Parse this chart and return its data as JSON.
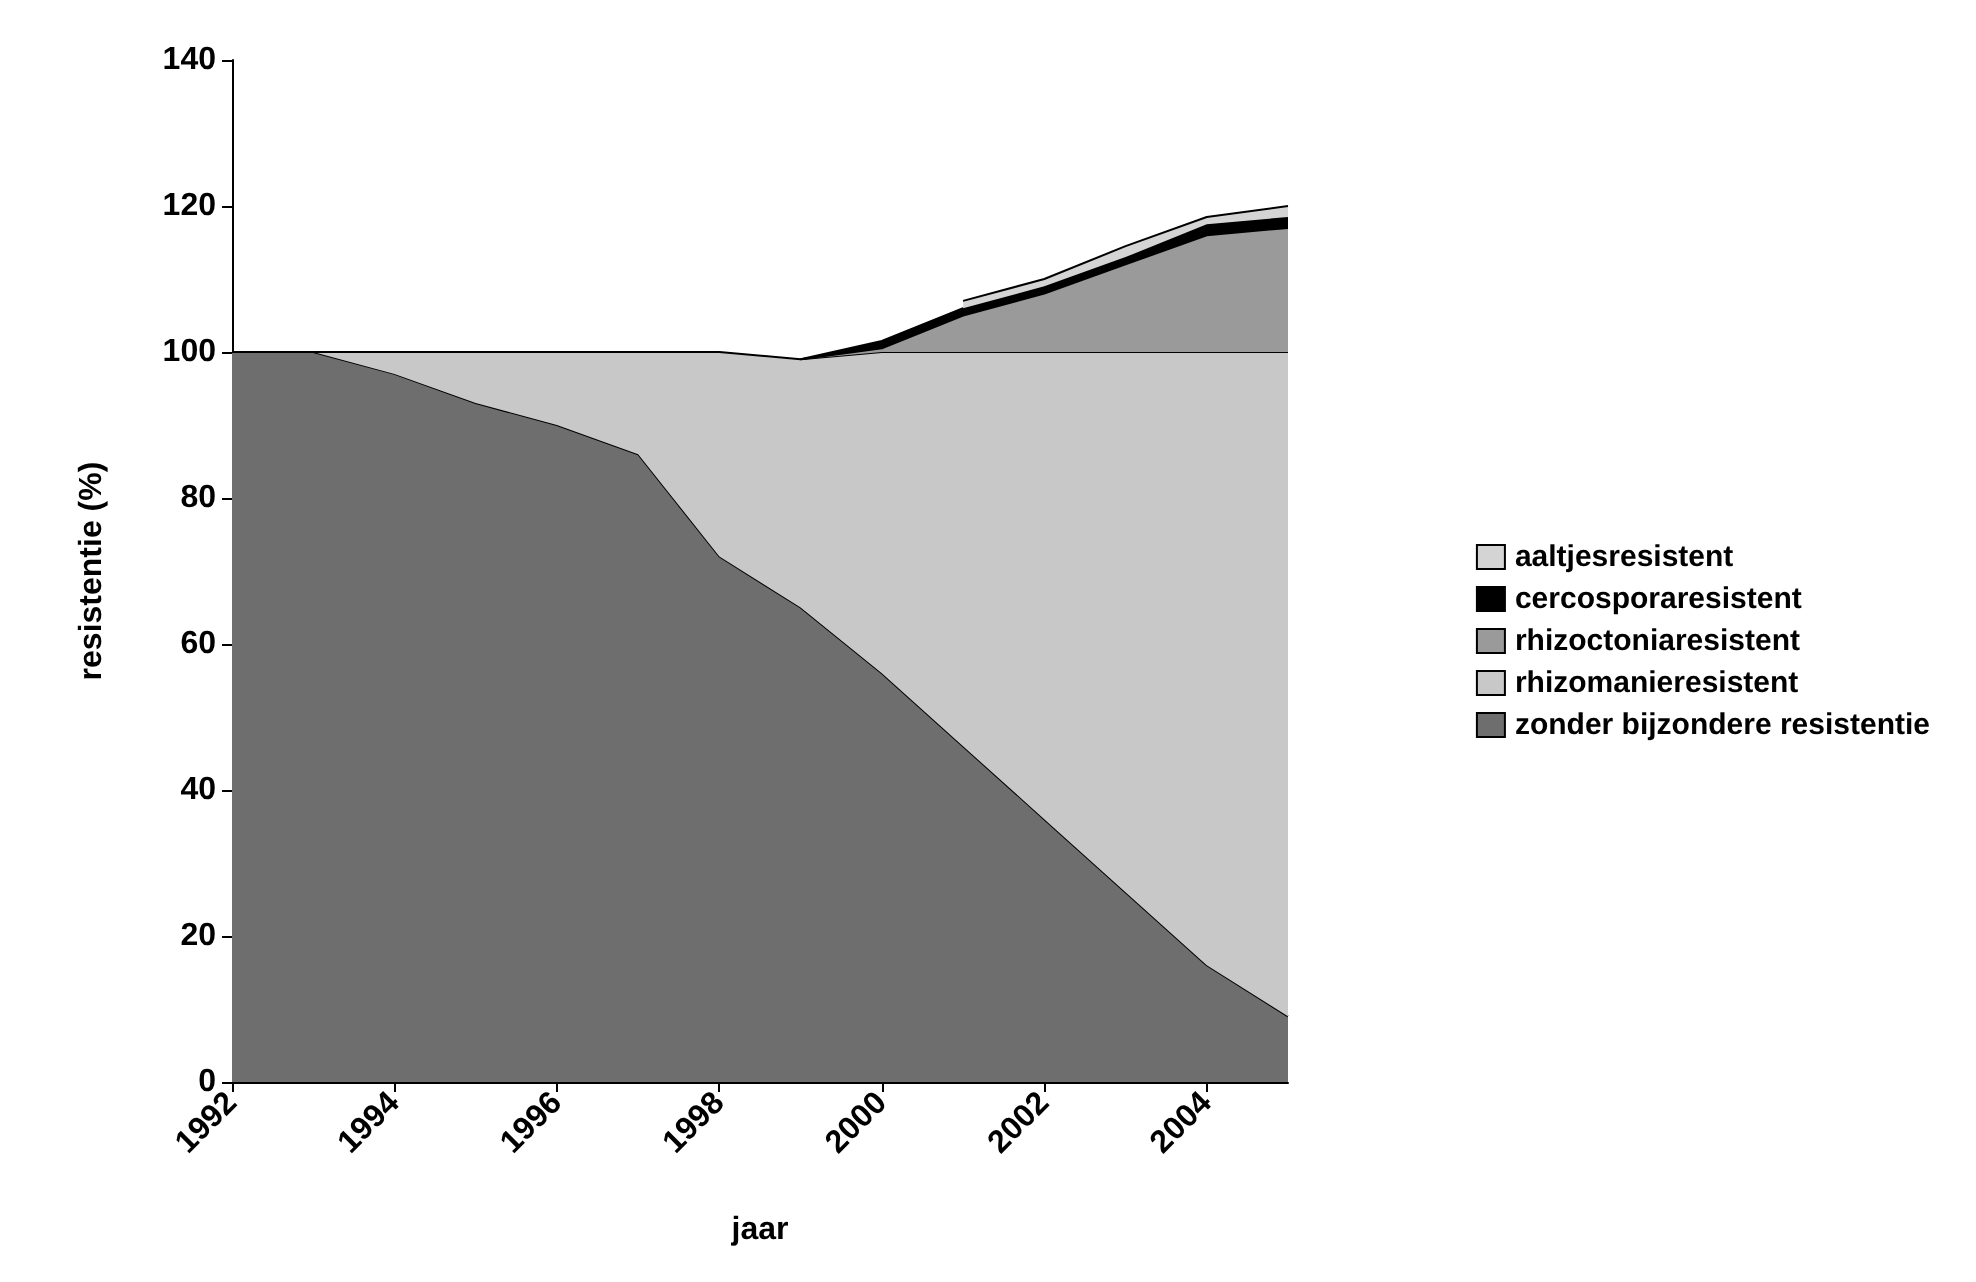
{
  "chart_data": {
    "type": "area",
    "stacked": true,
    "xlabel": "jaar",
    "ylabel": "resistentie (%)",
    "x": [
      1992,
      1993,
      1994,
      1995,
      1996,
      1997,
      1998,
      1999,
      2000,
      2001,
      2002,
      2003,
      2004,
      2005
    ],
    "xlim": [
      1992,
      2005
    ],
    "xticks": [
      1992,
      1994,
      1996,
      1998,
      2000,
      2002,
      2004
    ],
    "ylim": [
      0,
      140
    ],
    "yticks": [
      0,
      20,
      40,
      60,
      80,
      100,
      120,
      140
    ],
    "grid": false,
    "legend": "right",
    "series": [
      {
        "name": "zonder bijzondere resistentie",
        "color": "#6e6e6e",
        "values": [
          100,
          100,
          97,
          93,
          90,
          86,
          72,
          65,
          56,
          46,
          36,
          26,
          16,
          9
        ]
      },
      {
        "name": "rhizomanieresistent",
        "color": "#c8c8c8",
        "values": [
          null,
          0,
          3,
          7,
          10,
          14,
          28,
          34,
          44,
          54,
          64,
          74,
          84,
          91
        ]
      },
      {
        "name": "rhizoctoniaresistent",
        "color": "#9a9a9a",
        "values": [
          null,
          null,
          null,
          null,
          null,
          null,
          null,
          0,
          0.5,
          5,
          8,
          12,
          16,
          17
        ]
      },
      {
        "name": "cercosporaresistent",
        "color": "#000000",
        "values": [
          null,
          null,
          null,
          null,
          null,
          null,
          null,
          0,
          1,
          1,
          1,
          1,
          1.5,
          1.5
        ]
      },
      {
        "name": "aaltjesresistent",
        "color": "#d4d4d4",
        "values": [
          null,
          null,
          null,
          null,
          null,
          null,
          null,
          null,
          null,
          1,
          1,
          1.5,
          1,
          1.5
        ]
      }
    ]
  }
}
